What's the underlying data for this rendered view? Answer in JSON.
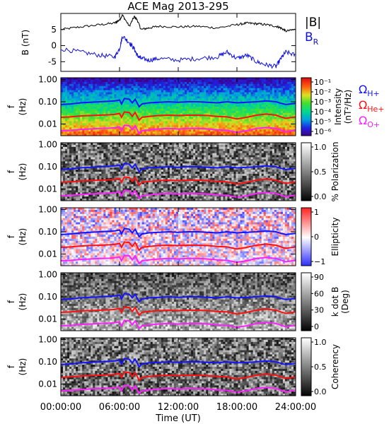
{
  "title": "ACE Mag 2013-295",
  "colors": {
    "b_total": "#000000",
    "b_radial": "#1010e0",
    "omega_h": "#1414ff",
    "omega_he": "#ff1010",
    "omega_o": "#ff20ff"
  },
  "chart_data": [
    {
      "type": "line",
      "title": "ACE Mag 2013-295",
      "ylabel": "B (nT)",
      "ylim": [
        -8,
        10
      ],
      "yticks": [
        "5",
        "0",
        "-5"
      ],
      "legend": [
        "|B|",
        "B_R"
      ],
      "series": [
        {
          "name": "|B|",
          "x": [
            0,
            2,
            4,
            5.5,
            6,
            6.3,
            7,
            7.5,
            7.8,
            8.2,
            9,
            10,
            12,
            14,
            16,
            18,
            19,
            20,
            21,
            22,
            22.5,
            23,
            24
          ],
          "values": [
            5,
            5.8,
            6.5,
            7,
            8,
            9.5,
            6,
            9,
            8,
            5,
            5.5,
            6,
            5.8,
            6,
            5.5,
            6.5,
            7,
            6.8,
            6.5,
            6,
            5.5,
            4.5,
            5
          ]
        },
        {
          "name": "B_R",
          "x": [
            0,
            2,
            4,
            5.5,
            6,
            6.3,
            7,
            7.5,
            7.8,
            8.2,
            9,
            10,
            12,
            14,
            16,
            17,
            18,
            19,
            20,
            21,
            22,
            22.5,
            23,
            24
          ],
          "values": [
            -1,
            -2,
            -3,
            -3.5,
            -1,
            3,
            1,
            -1,
            -3,
            -4,
            -4.5,
            -4,
            -4.5,
            -4,
            -3.5,
            -2,
            -4,
            -3,
            -5,
            -6,
            -6.5,
            -4,
            -2,
            -3
          ]
        }
      ]
    },
    {
      "type": "heatmap",
      "ylabel": "f (Hz)",
      "ylog": true,
      "ylim": [
        0.003,
        1.2
      ],
      "yticks": [
        "1.00",
        "0.10",
        "0.01"
      ],
      "colorbar_label": "Intensity (nT²/Hz)",
      "colorbar_ticks": [
        "10⁻¹",
        "10⁻²",
        "10⁻³",
        "10⁻⁴",
        "10⁻⁵",
        "10⁻⁶"
      ],
      "legend": [
        "Ω_H+",
        "Ω_He+",
        "Ω_O+"
      ]
    },
    {
      "type": "heatmap",
      "ylabel": "f (Hz)",
      "ylog": true,
      "ylim": [
        0.003,
        1.2
      ],
      "yticks": [
        "1.00",
        "0.10",
        "0.01"
      ],
      "colorbar_label": "% Polarization",
      "colorbar_ticks": [
        "1.0",
        "0.5",
        "0.0"
      ]
    },
    {
      "type": "heatmap",
      "ylabel": "f (Hz)",
      "ylog": true,
      "ylim": [
        0.003,
        1.2
      ],
      "yticks": [
        "1.00",
        "0.10",
        "0.01"
      ],
      "colorbar_label": "Ellipticity",
      "colorbar_ticks": [
        "1",
        "0",
        "−1"
      ]
    },
    {
      "type": "heatmap",
      "ylabel": "f (Hz)",
      "ylog": true,
      "ylim": [
        0.003,
        1.2
      ],
      "yticks": [
        "1.00",
        "0.10",
        "0.01"
      ],
      "colorbar_label": "k dot B (Deg)",
      "colorbar_ticks": [
        "90",
        "60",
        "30",
        "0"
      ]
    },
    {
      "type": "heatmap",
      "ylabel": "f (Hz)",
      "ylog": true,
      "ylim": [
        0.003,
        1.2
      ],
      "yticks": [
        "1.00",
        "0.10",
        "0.01"
      ],
      "colorbar_label": "Coherency",
      "colorbar_ticks": [
        "1.0",
        "0.5",
        "0.0"
      ],
      "xlabel": "Time (UT)",
      "xticks": [
        "00:00:00",
        "06:00:00",
        "12:00:00",
        "18:00:00",
        "24:00:00"
      ],
      "xlim": [
        0,
        24
      ]
    }
  ],
  "gyro_lines": {
    "x": [
      0,
      1,
      2,
      3,
      4,
      5,
      5.5,
      6,
      6.2,
      6.5,
      7,
      7.3,
      7.6,
      8,
      8.3,
      9,
      10,
      11,
      12,
      13,
      14,
      15,
      16,
      17,
      18,
      19,
      20,
      21,
      22,
      22.5,
      23,
      24
    ],
    "h_plus": [
      0.075,
      0.08,
      0.09,
      0.095,
      0.1,
      0.105,
      0.11,
      0.12,
      0.08,
      0.14,
      0.13,
      0.09,
      0.13,
      0.06,
      0.08,
      0.09,
      0.095,
      0.1,
      0.095,
      0.1,
      0.1,
      0.095,
      0.09,
      0.1,
      0.09,
      0.095,
      0.1,
      0.11,
      0.1,
      0.085,
      0.075,
      0.085
    ],
    "he_plus": [
      0.02,
      0.021,
      0.023,
      0.024,
      0.025,
      0.026,
      0.027,
      0.03,
      0.02,
      0.035,
      0.033,
      0.022,
      0.033,
      0.015,
      0.02,
      0.022,
      0.024,
      0.025,
      0.024,
      0.025,
      0.025,
      0.024,
      0.022,
      0.021,
      0.017,
      0.02,
      0.025,
      0.028,
      0.025,
      0.021,
      0.018,
      0.021
    ],
    "o_plus": [
      0.005,
      0.0052,
      0.0057,
      0.006,
      0.0063,
      0.0065,
      0.0068,
      0.0075,
      0.005,
      0.0088,
      0.0083,
      0.0055,
      0.0083,
      0.0038,
      0.005,
      0.0055,
      0.006,
      0.0063,
      0.006,
      0.0063,
      0.0063,
      0.006,
      0.0055,
      0.0052,
      0.0043,
      0.005,
      0.0063,
      0.007,
      0.0063,
      0.0053,
      0.0045,
      0.0053
    ]
  }
}
